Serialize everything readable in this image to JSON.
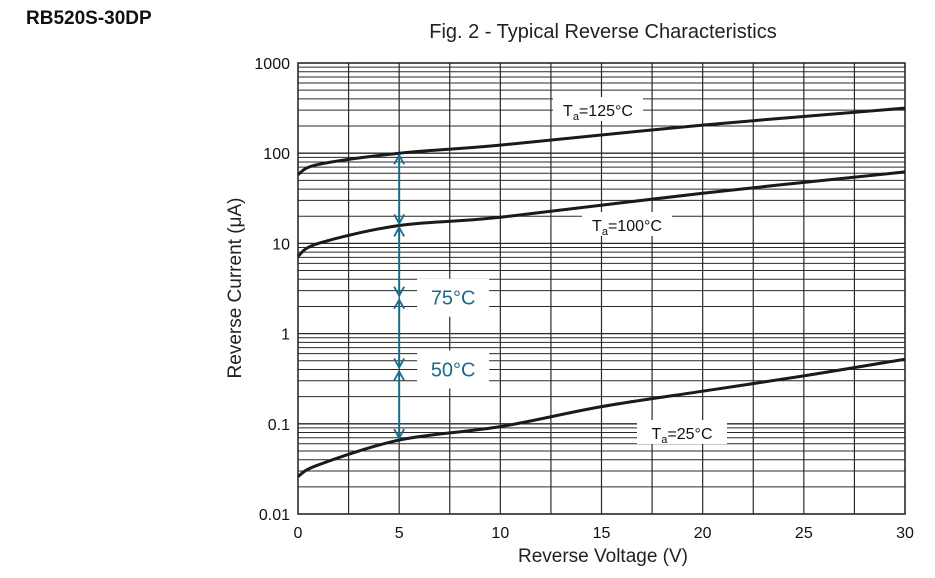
{
  "part_number": "RB520S-30DP",
  "chart_data": {
    "type": "line",
    "title": "Fig. 2 - Typical Reverse Characteristics",
    "xlabel": "Reverse Voltage (V)",
    "ylabel": "Reverse Current (μA)",
    "xlim": [
      0,
      30
    ],
    "ylim": [
      0.01,
      1000
    ],
    "yscale": "log",
    "grid": true,
    "x_ticks": [
      "0",
      "5",
      "10",
      "15",
      "20",
      "25",
      "30"
    ],
    "y_ticks": [
      "0.01",
      "0.1",
      "1",
      "10",
      "100",
      "1000"
    ],
    "series": [
      {
        "name": "Ta=125°C",
        "label_main": "T",
        "label_sub": "a",
        "label_rest": "=125°C",
        "x": [
          0,
          1,
          5,
          10,
          20,
          30
        ],
        "y": [
          58,
          75,
          100,
          123,
          205,
          316
        ]
      },
      {
        "name": "Ta=100°C",
        "label_main": "T",
        "label_sub": "a",
        "label_rest": "=100°C",
        "x": [
          0,
          1,
          5,
          10,
          20,
          30
        ],
        "y": [
          7.2,
          10,
          15.8,
          19.5,
          36,
          62
        ]
      },
      {
        "name": "Ta=25°C",
        "label_main": "T",
        "label_sub": "a",
        "label_rest": "=25°C",
        "x": [
          0,
          1,
          5,
          10,
          15,
          20,
          25,
          30
        ],
        "y": [
          0.026,
          0.035,
          0.066,
          0.093,
          0.155,
          0.23,
          0.34,
          0.52
        ]
      }
    ],
    "annotations": [
      {
        "text": "75°C",
        "x": 5,
        "y": 2.5
      },
      {
        "text": "50°C",
        "x": 5,
        "y": 0.4
      }
    ],
    "arrow_levels": [
      100,
      15.8,
      2.5,
      0.4,
      0.066
    ],
    "colors": {
      "curve": "#1a1a1a",
      "grid": "#2a2a2a",
      "annotation": "#1b6a8c"
    }
  }
}
